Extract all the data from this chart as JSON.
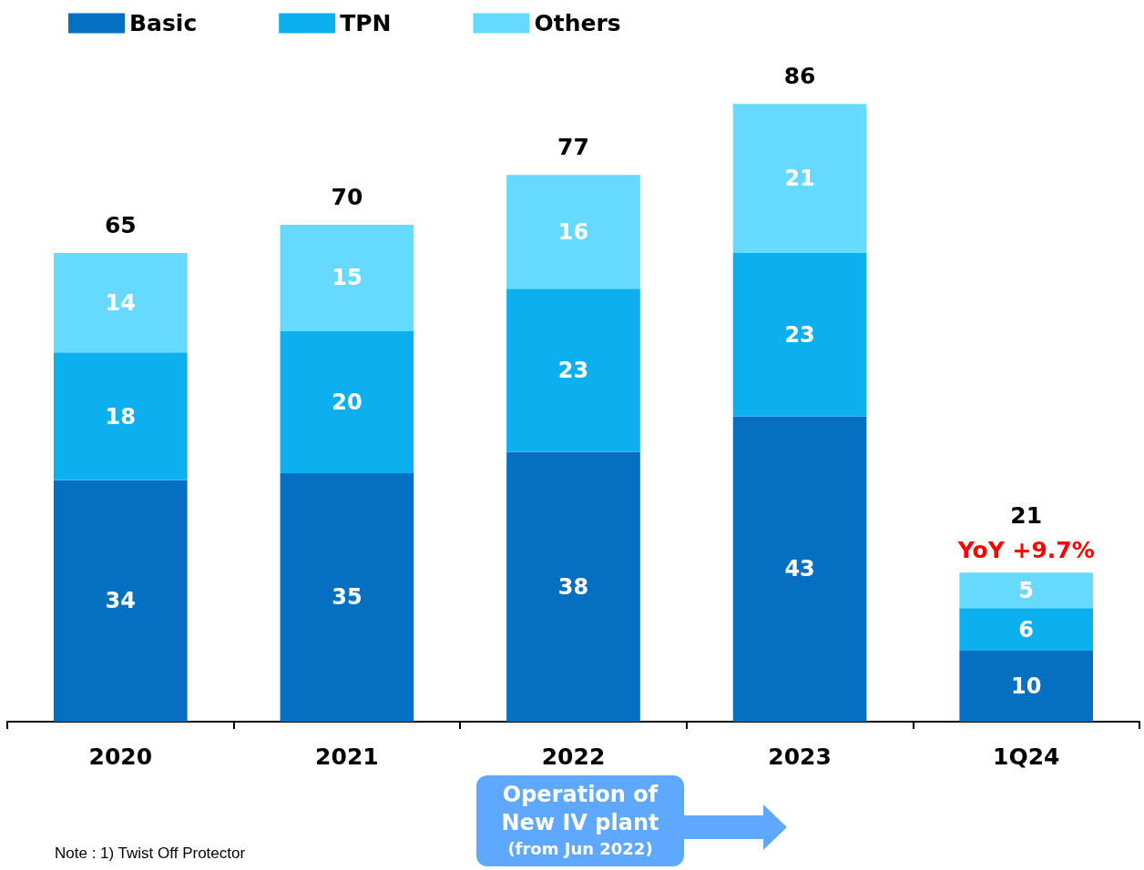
{
  "chart_data": {
    "type": "bar",
    "stacked": true,
    "categories": [
      "2020",
      "2021",
      "2022",
      "2023",
      "1Q24"
    ],
    "series": [
      {
        "name": "Basic",
        "color": "#0570c1",
        "values": [
          34,
          35,
          38,
          43,
          10
        ]
      },
      {
        "name": "TPN",
        "color": "#0cb0ef",
        "values": [
          18,
          20,
          23,
          23,
          6
        ]
      },
      {
        "name": "Others",
        "color": "#66dafe",
        "values": [
          14,
          15,
          16,
          21,
          5
        ]
      }
    ],
    "data_labels": true,
    "totals": [
      "65",
      "70",
      "77",
      "86",
      "21"
    ],
    "legend": "top left",
    "annotations": [
      {
        "text": "YoY +9.7%",
        "x": "1Q24",
        "y": 21
      },
      "Operation of\nNew IV plant\n(from Jun 2022)",
      "Note : 1) Twist Off Protector"
    ]
  }
}
